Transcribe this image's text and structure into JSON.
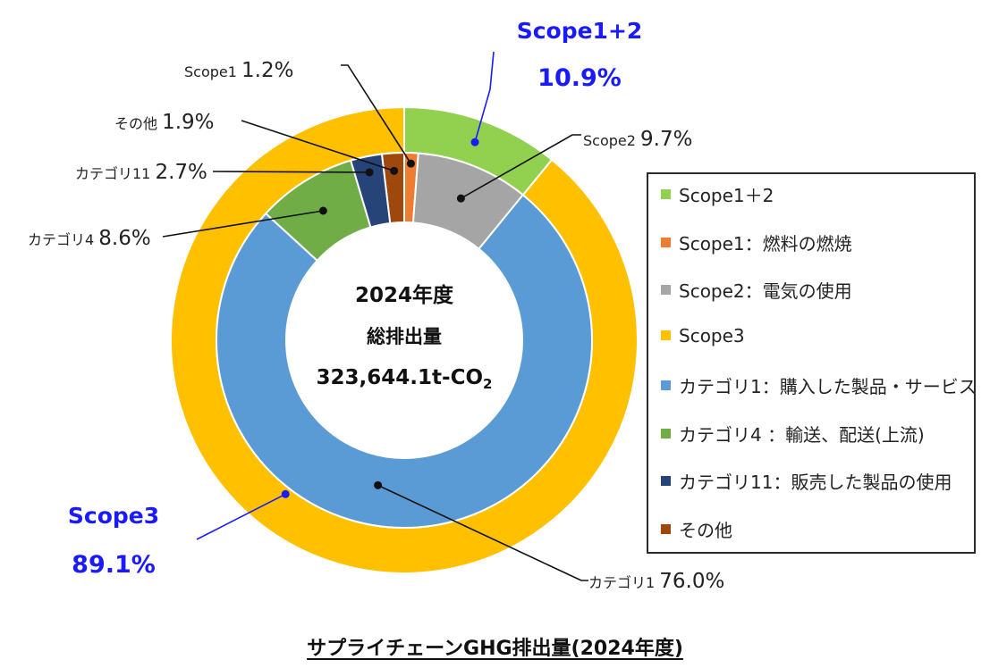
{
  "chart_data": {
    "type": "donut",
    "title": "サプライチェーンGHG排出量(2024年度)",
    "center": {
      "line1": "2024年度",
      "line2": "総排出量",
      "line3": "323,644.1t-CO",
      "line3_sub": "2"
    },
    "outer_ring": [
      {
        "name": "Scope1＋2",
        "value": 10.9,
        "color": "#92d050"
      },
      {
        "name": "Scope3",
        "value": 89.1,
        "color": "#ffc000"
      }
    ],
    "inner_ring": [
      {
        "name": "Scope1：燃料の燃焼",
        "value": 1.2,
        "color": "#ed7d31"
      },
      {
        "name": "Scope2：電気の使用",
        "value": 9.7,
        "color": "#a5a5a5"
      },
      {
        "name": "カテゴリ1：購入した製品・サービス",
        "value": 76.0,
        "color": "#5b9bd5"
      },
      {
        "name": "カテゴリ4 ：輸送、配送(上流)",
        "value": 8.6,
        "color": "#70ad47"
      },
      {
        "name": "カテゴリ11：販売した製品の使用",
        "value": 2.7,
        "color": "#264478"
      },
      {
        "name": "その他",
        "value": 1.9,
        "color": "#9e480e"
      }
    ],
    "callouts": {
      "scope12_name": "Scope1+2",
      "scope12_pct": "10.9%",
      "scope3_name": "Scope3",
      "scope3_pct": "89.1%",
      "scope1_name": "Scope1",
      "scope1_pct": "1.2%",
      "scope2_name": "Scope2",
      "scope2_pct": "9.7%",
      "other_name": "その他",
      "other_pct": "1.9%",
      "cat11_name": "カテゴリ11",
      "cat11_pct": "2.7%",
      "cat4_name": "カテゴリ4",
      "cat4_pct": "8.6%",
      "cat1_name": "カテゴリ1",
      "cat1_pct": "76.0%"
    },
    "legend": [
      {
        "label": "Scope1＋2",
        "color": "#92d050"
      },
      {
        "label": "Scope1：燃料の燃焼",
        "color": "#ed7d31"
      },
      {
        "label": "Scope2：電気の使用",
        "color": "#a5a5a5"
      },
      {
        "label": "Scope3",
        "color": "#ffc000"
      },
      {
        "label": "カテゴリ1：購入した製品・サービス",
        "color": "#5b9bd5"
      },
      {
        "label": "カテゴリ4 ：輸送、配送(上流)",
        "color": "#70ad47"
      },
      {
        "label": "カテゴリ11：販売した製品の使用",
        "color": "#264478"
      },
      {
        "label": "その他",
        "color": "#9e480e"
      }
    ],
    "highlight_color": "#1a1aff"
  }
}
